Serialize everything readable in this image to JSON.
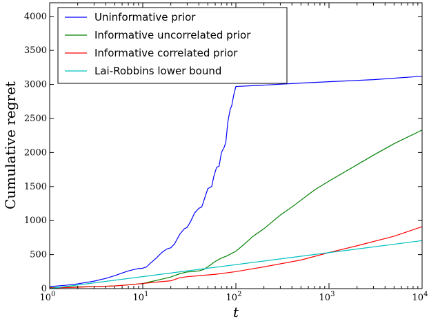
{
  "chart_data": {
    "type": "line",
    "xlabel": "t",
    "ylabel": "Cumulative regret",
    "xscale": "log",
    "xlim": [
      1,
      10000
    ],
    "ylim": [
      0,
      4200
    ],
    "x_ticks": [
      {
        "value": 1,
        "base": "10",
        "exp": "0"
      },
      {
        "value": 10,
        "base": "10",
        "exp": "1"
      },
      {
        "value": 100,
        "base": "10",
        "exp": "2"
      },
      {
        "value": 1000,
        "base": "10",
        "exp": "3"
      },
      {
        "value": 10000,
        "base": "10",
        "exp": "4"
      }
    ],
    "y_ticks": [
      "0",
      "500",
      "1000",
      "1500",
      "2000",
      "2500",
      "3000",
      "3500",
      "4000"
    ],
    "grid": false,
    "legend_position": "top-left",
    "series": [
      {
        "name": "Uninformative prior",
        "color": "#0000ff",
        "points": [
          [
            1,
            30
          ],
          [
            1.5,
            50
          ],
          [
            2,
            70
          ],
          [
            3,
            110
          ],
          [
            4,
            150
          ],
          [
            5,
            190
          ],
          [
            6,
            230
          ],
          [
            7,
            260
          ],
          [
            8,
            280
          ],
          [
            9,
            295
          ],
          [
            10,
            300
          ],
          [
            11,
            320
          ],
          [
            12,
            370
          ],
          [
            14,
            450
          ],
          [
            16,
            530
          ],
          [
            18,
            580
          ],
          [
            20,
            600
          ],
          [
            22,
            660
          ],
          [
            25,
            800
          ],
          [
            28,
            880
          ],
          [
            30,
            900
          ],
          [
            33,
            1000
          ],
          [
            36,
            1110
          ],
          [
            40,
            1180
          ],
          [
            43,
            1200
          ],
          [
            46,
            1320
          ],
          [
            50,
            1470
          ],
          [
            55,
            1500
          ],
          [
            58,
            1650
          ],
          [
            62,
            1780
          ],
          [
            66,
            1800
          ],
          [
            70,
            2000
          ],
          [
            75,
            2080
          ],
          [
            78,
            2150
          ],
          [
            82,
            2450
          ],
          [
            87,
            2640
          ],
          [
            90,
            2680
          ],
          [
            95,
            2850
          ],
          [
            100,
            2970
          ],
          [
            200,
            2990
          ],
          [
            500,
            3020
          ],
          [
            1000,
            3040
          ],
          [
            3000,
            3070
          ],
          [
            10000,
            3120
          ]
        ]
      },
      {
        "name": "Informative uncorrelated prior",
        "color": "#008000",
        "points": [
          [
            1,
            15
          ],
          [
            2,
            25
          ],
          [
            3,
            30
          ],
          [
            4,
            35
          ],
          [
            5,
            40
          ],
          [
            7,
            55
          ],
          [
            10,
            75
          ],
          [
            12,
            100
          ],
          [
            15,
            130
          ],
          [
            20,
            170
          ],
          [
            25,
            220
          ],
          [
            30,
            245
          ],
          [
            35,
            250
          ],
          [
            40,
            260
          ],
          [
            45,
            280
          ],
          [
            50,
            320
          ],
          [
            60,
            400
          ],
          [
            70,
            450
          ],
          [
            80,
            480
          ],
          [
            100,
            550
          ],
          [
            120,
            640
          ],
          [
            150,
            760
          ],
          [
            200,
            880
          ],
          [
            300,
            1080
          ],
          [
            400,
            1200
          ],
          [
            500,
            1300
          ],
          [
            700,
            1450
          ],
          [
            1000,
            1580
          ],
          [
            2000,
            1820
          ],
          [
            3000,
            1960
          ],
          [
            5000,
            2130
          ],
          [
            10000,
            2330
          ]
        ]
      },
      {
        "name": "Informative correlated prior",
        "color": "#ff0000",
        "points": [
          [
            1,
            10
          ],
          [
            2,
            20
          ],
          [
            3,
            30
          ],
          [
            5,
            40
          ],
          [
            7,
            55
          ],
          [
            10,
            75
          ],
          [
            15,
            100
          ],
          [
            20,
            115
          ],
          [
            25,
            160
          ],
          [
            30,
            175
          ],
          [
            40,
            190
          ],
          [
            60,
            210
          ],
          [
            100,
            250
          ],
          [
            200,
            320
          ],
          [
            500,
            420
          ],
          [
            1000,
            530
          ],
          [
            2000,
            630
          ],
          [
            5000,
            770
          ],
          [
            10000,
            910
          ]
        ]
      },
      {
        "name": "Lai-Robbins lower bound",
        "color": "#00bfbf",
        "points": [
          [
            1,
            0
          ],
          [
            10000,
            705
          ]
        ]
      }
    ]
  }
}
